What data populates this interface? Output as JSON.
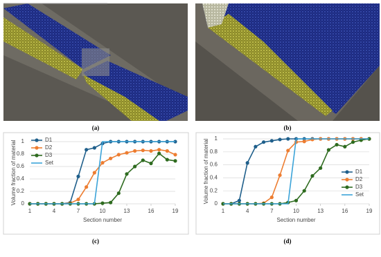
{
  "images": [
    {
      "label": "(a)"
    },
    {
      "label": "(b)"
    }
  ],
  "chart_data": [
    {
      "type": "line",
      "label": "(c)",
      "xlabel": "Section number",
      "ylabel": "Volume fraction of material",
      "x": [
        1,
        2,
        3,
        4,
        5,
        6,
        7,
        8,
        9,
        10,
        11,
        12,
        13,
        14,
        15,
        16,
        17,
        18,
        19
      ],
      "xlim": [
        1,
        19
      ],
      "xticks": [
        1,
        4,
        7,
        10,
        13,
        16,
        19
      ],
      "ylim": [
        0,
        1
      ],
      "yticks": [
        0,
        0.2,
        0.4,
        0.6,
        0.8,
        1
      ],
      "grid": true,
      "legend": "top-left",
      "series": [
        {
          "name": "D1",
          "color": "#1f5f8b",
          "marker": "circle",
          "values": [
            0,
            0,
            0,
            0,
            0,
            0.02,
            0.44,
            0.87,
            0.9,
            0.97,
            1,
            1,
            1,
            1,
            1,
            1,
            1,
            1,
            1
          ]
        },
        {
          "name": "D2",
          "color": "#ed7d31",
          "marker": "circle",
          "values": [
            0,
            0,
            0,
            0,
            0,
            0.01,
            0.07,
            0.27,
            0.5,
            0.66,
            0.73,
            0.79,
            0.82,
            0.85,
            0.86,
            0.85,
            0.87,
            0.85,
            0.79
          ]
        },
        {
          "name": "D3",
          "color": "#2e6b1f",
          "marker": "circle",
          "values": [
            0,
            0,
            0,
            0,
            0,
            0,
            0,
            0,
            0,
            0.01,
            0.02,
            0.17,
            0.48,
            0.6,
            0.7,
            0.65,
            0.81,
            0.71,
            0.69
          ]
        },
        {
          "name": "Set",
          "color": "#3ba3d8",
          "marker": "none",
          "values": [
            0,
            0,
            0,
            0,
            0,
            0,
            0,
            0,
            0,
            1,
            1,
            1,
            1,
            1,
            1,
            1,
            1,
            1,
            1
          ]
        }
      ]
    },
    {
      "type": "line",
      "label": "(d)",
      "xlabel": "Section number",
      "ylabel": "Volume fraction of material",
      "x": [
        1,
        2,
        3,
        4,
        5,
        6,
        7,
        8,
        9,
        10,
        11,
        12,
        13,
        14,
        15,
        16,
        17,
        18,
        19
      ],
      "xlim": [
        1,
        19
      ],
      "xticks": [
        1,
        4,
        7,
        10,
        13,
        16,
        19
      ],
      "ylim": [
        0,
        1
      ],
      "yticks": [
        0,
        0.2,
        0.4,
        0.6,
        0.8,
        1
      ],
      "grid": true,
      "legend": "bottom-right",
      "series": [
        {
          "name": "D1",
          "color": "#1f5f8b",
          "marker": "circle",
          "values": [
            0,
            0,
            0.05,
            0.63,
            0.88,
            0.95,
            0.97,
            0.99,
            1,
            1,
            1,
            1,
            1,
            1,
            1,
            1,
            1,
            1,
            1
          ]
        },
        {
          "name": "D2",
          "color": "#ed7d31",
          "marker": "circle",
          "values": [
            0,
            0,
            0,
            0,
            0,
            0.01,
            0.1,
            0.44,
            0.82,
            0.95,
            0.96,
            0.99,
            1,
            1,
            1,
            1,
            1,
            1,
            1
          ]
        },
        {
          "name": "D3",
          "color": "#2e6b1f",
          "marker": "circle",
          "values": [
            0,
            0,
            0,
            0,
            0,
            0,
            0,
            0,
            0.02,
            0.05,
            0.2,
            0.43,
            0.55,
            0.83,
            0.91,
            0.88,
            0.95,
            0.98,
            1
          ]
        },
        {
          "name": "Set",
          "color": "#3ba3d8",
          "marker": "none",
          "values": [
            0,
            0,
            0,
            0,
            0,
            0,
            0,
            0,
            0,
            1,
            1,
            1,
            1,
            1,
            1,
            1,
            1,
            1,
            1
          ]
        }
      ]
    }
  ]
}
